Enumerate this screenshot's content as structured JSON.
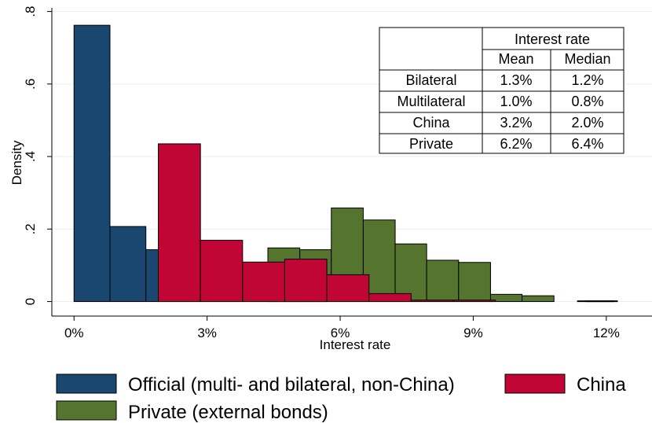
{
  "chart_data": {
    "type": "bar",
    "xlabel": "Interest rate",
    "ylabel": "Density",
    "xlim": [
      -0.005,
      0.1303
    ],
    "ylim": [
      -0.04,
      0.81
    ],
    "x_ticks": [
      {
        "value": 0,
        "label": "0%"
      },
      {
        "value": 0.03,
        "label": "3%"
      },
      {
        "value": 0.06,
        "label": "6%"
      },
      {
        "value": 0.09,
        "label": "9%"
      },
      {
        "value": 0.12,
        "label": "12%"
      }
    ],
    "y_ticks": [
      {
        "value": 0,
        "label": "0"
      },
      {
        "value": 0.2,
        "label": ".2"
      },
      {
        "value": 0.4,
        "label": ".4"
      },
      {
        "value": 0.6,
        "label": ".6"
      },
      {
        "value": 0.8,
        "label": ".8"
      }
    ],
    "grid": true,
    "colors": {
      "Official": "#1a476f",
      "Private": "#55752f",
      "China": "#c10534"
    },
    "series": [
      {
        "name": "Official (multi- and bilateral, non-China)",
        "key": "Official",
        "bins": [
          {
            "x0": 0.0,
            "x1": 0.0081,
            "y": 0.762
          },
          {
            "x0": 0.0081,
            "x1": 0.0162,
            "y": 0.207
          },
          {
            "x0": 0.0162,
            "x1": 0.0243,
            "y": 0.143
          },
          {
            "x0": 0.0243,
            "x1": 0.0324,
            "y": 0.078
          },
          {
            "x0": 0.0324,
            "x1": 0.0405,
            "y": 0.022
          },
          {
            "x0": 0.0405,
            "x1": 0.0486,
            "y": 0.011
          },
          {
            "x0": 0.0486,
            "x1": 0.0567,
            "y": 0.006
          },
          {
            "x0": 0.1135,
            "x1": 0.1216,
            "y": 0.002
          }
        ]
      },
      {
        "name": "Private (external bonds)",
        "key": "Private",
        "bins": [
          {
            "x0": 0.0437,
            "x1": 0.0509,
            "y": 0.148
          },
          {
            "x0": 0.0509,
            "x1": 0.058,
            "y": 0.143
          },
          {
            "x0": 0.058,
            "x1": 0.0652,
            "y": 0.258
          },
          {
            "x0": 0.0652,
            "x1": 0.0724,
            "y": 0.225
          },
          {
            "x0": 0.0724,
            "x1": 0.0795,
            "y": 0.159
          },
          {
            "x0": 0.0795,
            "x1": 0.0867,
            "y": 0.114
          },
          {
            "x0": 0.0867,
            "x1": 0.0939,
            "y": 0.108
          },
          {
            "x0": 0.0939,
            "x1": 0.101,
            "y": 0.02
          },
          {
            "x0": 0.101,
            "x1": 0.1082,
            "y": 0.016
          },
          {
            "x0": 0.1154,
            "x1": 0.1225,
            "y": 0.002
          }
        ]
      },
      {
        "name": "China",
        "key": "China",
        "bins": [
          {
            "x0": 0.019,
            "x1": 0.0285,
            "y": 0.435
          },
          {
            "x0": 0.0285,
            "x1": 0.038,
            "y": 0.169
          },
          {
            "x0": 0.038,
            "x1": 0.0475,
            "y": 0.109
          },
          {
            "x0": 0.0475,
            "x1": 0.057,
            "y": 0.117
          },
          {
            "x0": 0.057,
            "x1": 0.0665,
            "y": 0.074
          },
          {
            "x0": 0.0665,
            "x1": 0.076,
            "y": 0.022
          },
          {
            "x0": 0.076,
            "x1": 0.0855,
            "y": 0.004
          },
          {
            "x0": 0.0855,
            "x1": 0.095,
            "y": 0.004
          }
        ]
      }
    ],
    "table": {
      "header_group": "Interest rate",
      "columns": [
        "Mean",
        "Median"
      ],
      "rows": [
        {
          "label": "Bilateral",
          "mean": "1.3%",
          "median": "1.2%"
        },
        {
          "label": "Multilateral",
          "mean": "1.0%",
          "median": "0.8%"
        },
        {
          "label": "China",
          "mean": "3.2%",
          "median": "2.0%"
        },
        {
          "label": "Private",
          "mean": "6.2%",
          "median": "6.4%"
        }
      ]
    },
    "legend": {
      "position": "bottom",
      "items": [
        {
          "key": "Official",
          "label": "Official (multi- and bilateral, non-China)"
        },
        {
          "key": "China",
          "label": "China"
        },
        {
          "key": "Private",
          "label": "Private (external bonds)"
        }
      ]
    }
  }
}
